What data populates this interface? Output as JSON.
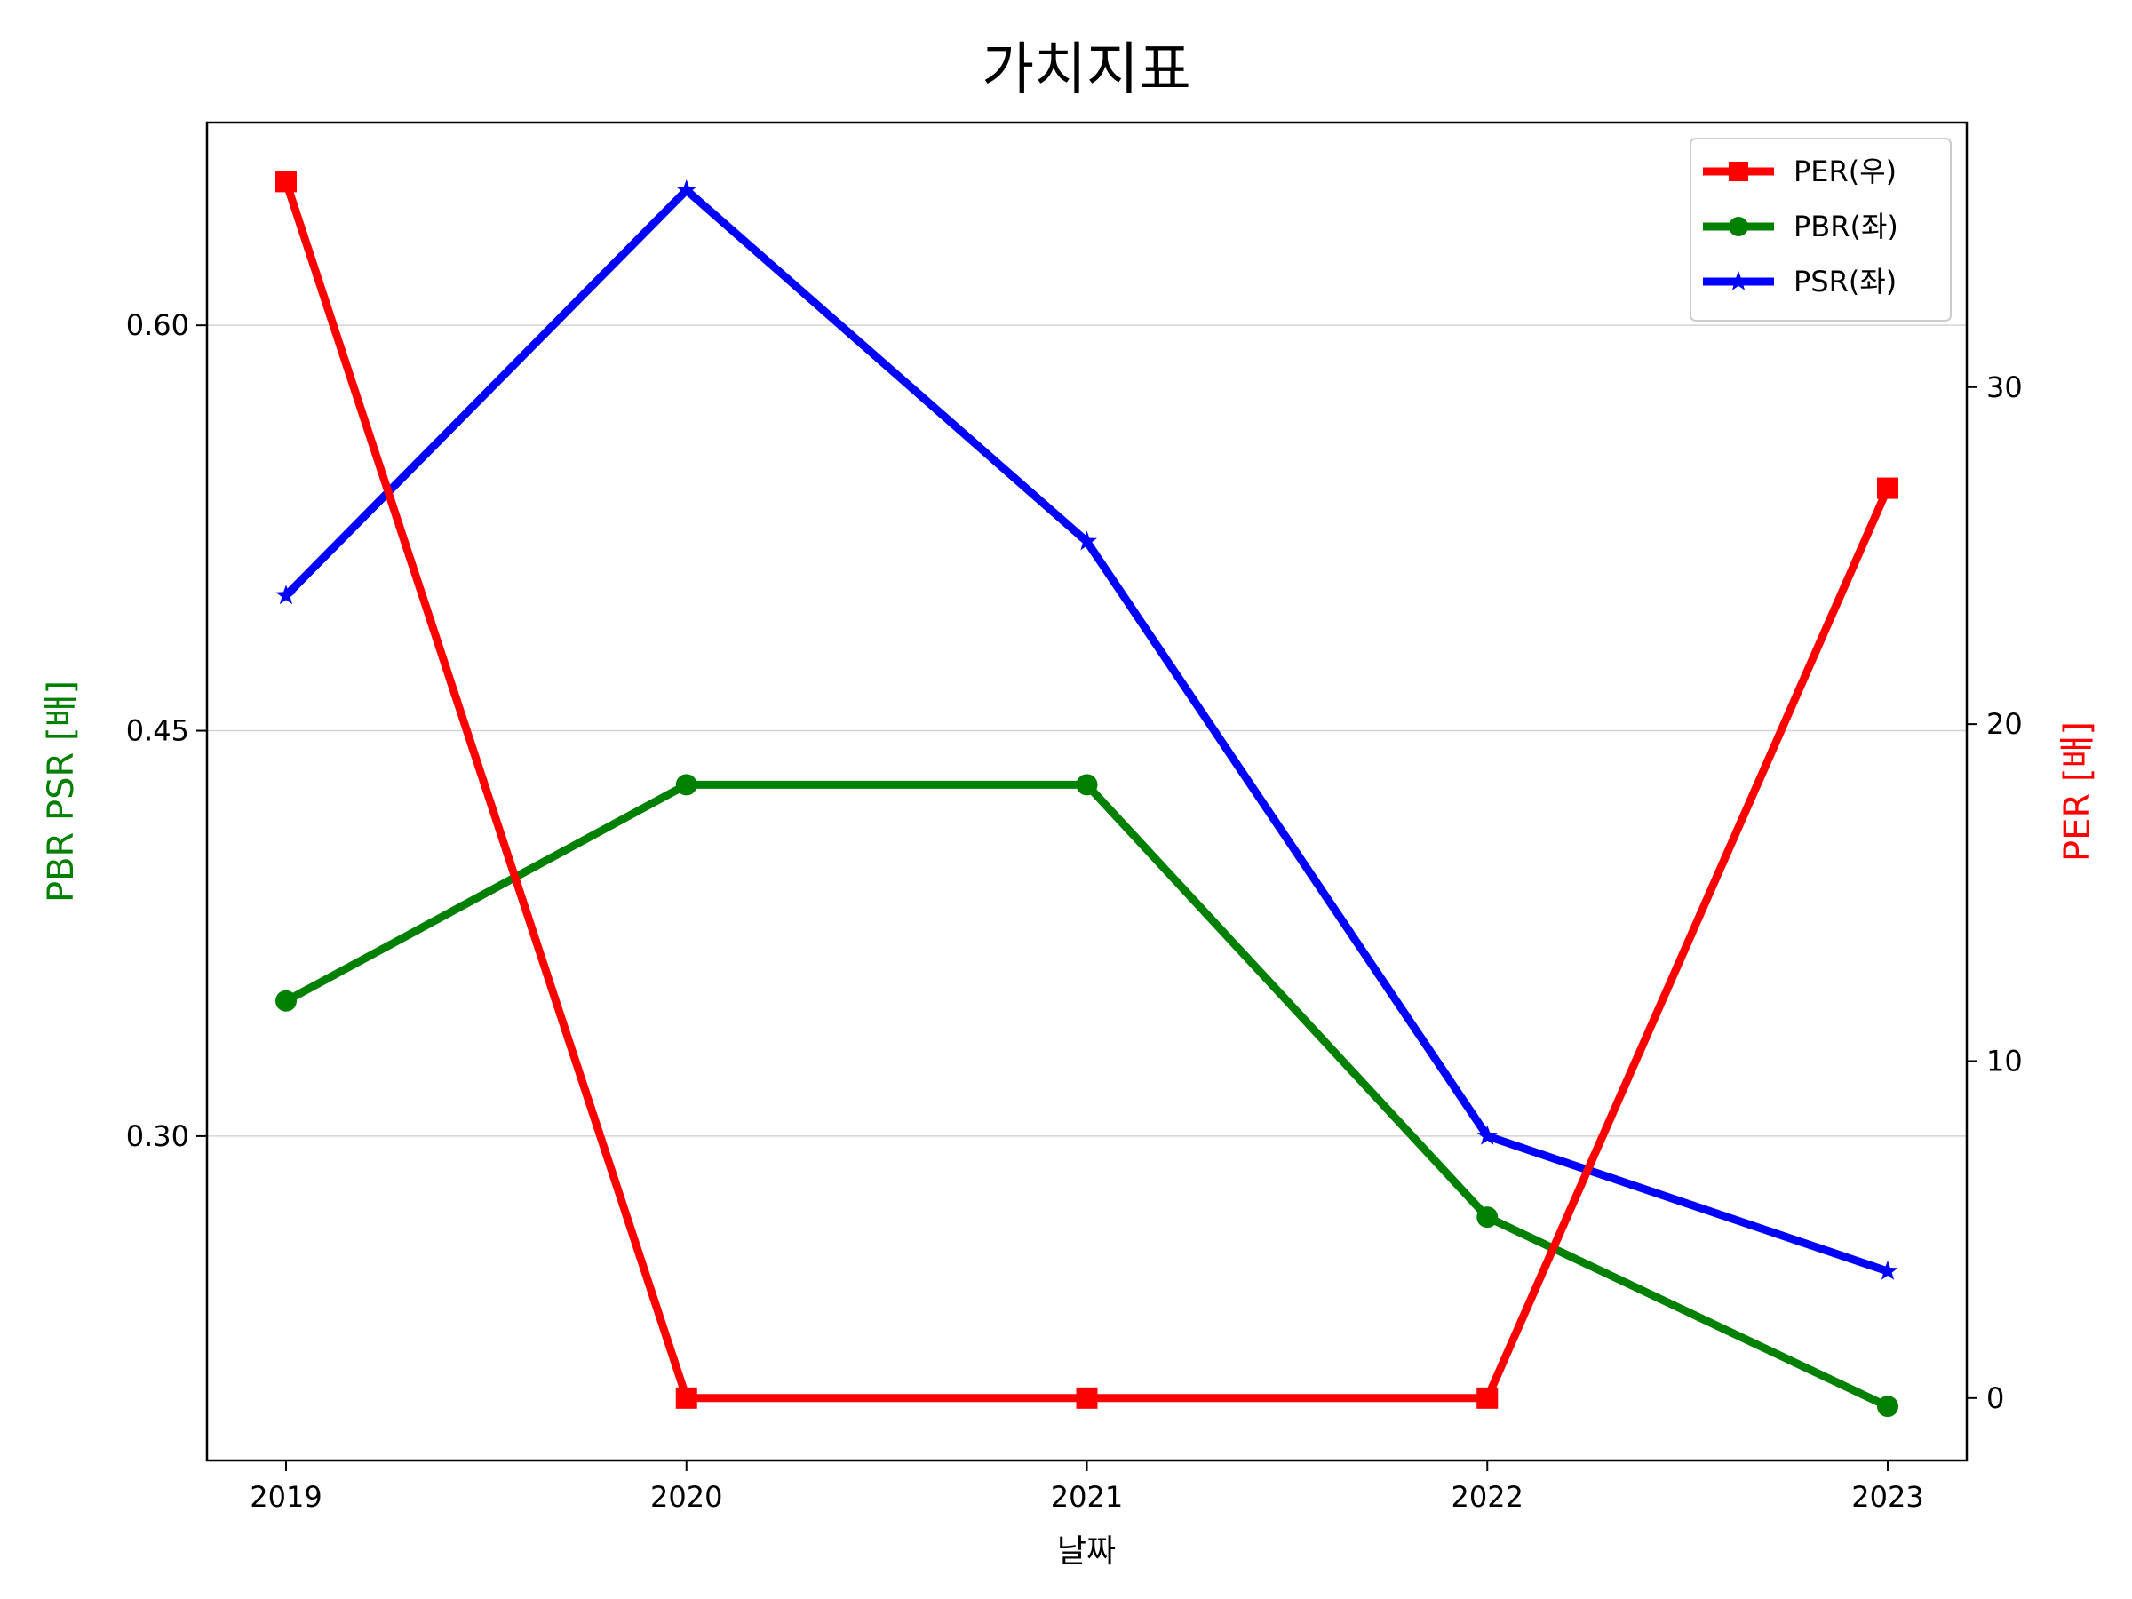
{
  "chart_data": {
    "type": "line",
    "title": "가치지표",
    "xlabel": "날짜",
    "ylabel_left": "PBR PSR [배]",
    "ylabel_right": "PER [배]",
    "x": [
      "2019",
      "2020",
      "2021",
      "2022",
      "2023"
    ],
    "ylim_left": [
      0.18,
      0.675
    ],
    "yticks_left": [
      "0.30",
      "0.45",
      "0.60"
    ],
    "ylim_right": [
      -1.85,
      37.85
    ],
    "yticks_right": [
      "0",
      "10",
      "20",
      "30"
    ],
    "grid": "horizontal (left axis)",
    "legend_position": "top-right",
    "series": [
      {
        "name": "PER(우)",
        "axis": "right",
        "color": "#ff0000",
        "marker": "square",
        "values": [
          36.1,
          0.0,
          0.0,
          0.0,
          27.0
        ]
      },
      {
        "name": "PBR(좌)",
        "axis": "left",
        "color": "#008000",
        "marker": "circle",
        "values": [
          0.35,
          0.43,
          0.43,
          0.27,
          0.2
        ]
      },
      {
        "name": "PSR(좌)",
        "axis": "left",
        "color": "#0000ff",
        "marker": "star",
        "values": [
          0.5,
          0.65,
          0.52,
          0.3,
          0.25
        ]
      }
    ]
  }
}
